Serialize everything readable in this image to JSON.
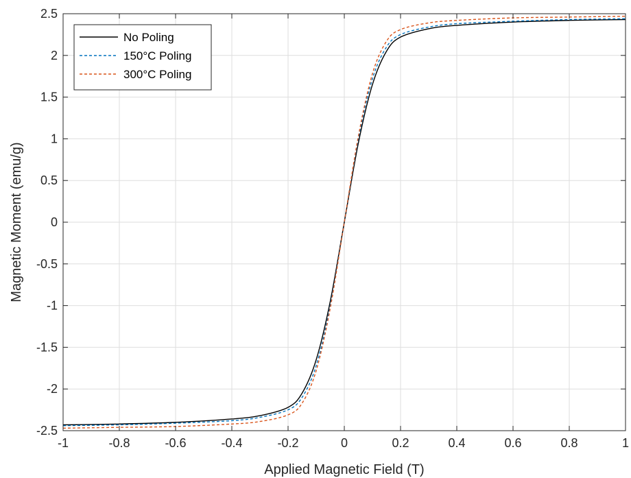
{
  "chart_data": {
    "type": "line",
    "title": "",
    "xlabel": "Applied Magnetic Field (T)",
    "ylabel": "Magnetic Moment (emu/g)",
    "xlim": [
      -1,
      1
    ],
    "ylim": [
      -2.5,
      2.5
    ],
    "xticks": [
      -1,
      -0.8,
      -0.6,
      -0.4,
      -0.2,
      0,
      0.2,
      0.4,
      0.6,
      0.8,
      1
    ],
    "xtick_labels": [
      "-1",
      "-0.8",
      "-0.6",
      "-0.4",
      "-0.2",
      "0",
      "0.2",
      "0.4",
      "0.6",
      "0.8",
      "1"
    ],
    "yticks": [
      -2.5,
      -2,
      -1.5,
      -1,
      -0.5,
      0,
      0.5,
      1,
      1.5,
      2,
      2.5
    ],
    "ytick_labels": [
      "-2.5",
      "-2",
      "-1.5",
      "-1",
      "-0.5",
      "0",
      "0.5",
      "1",
      "1.5",
      "2",
      "2.5"
    ],
    "grid": true,
    "legend_position": "top-left",
    "series": [
      {
        "name": "No Poling",
        "color": "#000000",
        "style": "solid",
        "x": [
          -1,
          -0.8,
          -0.6,
          -0.4,
          -0.3,
          -0.2,
          -0.15,
          -0.1,
          -0.05,
          0,
          0.05,
          0.1,
          0.15,
          0.2,
          0.3,
          0.4,
          0.6,
          0.8,
          1
        ],
        "y": [
          -2.43,
          -2.42,
          -2.4,
          -2.36,
          -2.32,
          -2.22,
          -2.05,
          -1.65,
          -0.95,
          0.0,
          0.95,
          1.65,
          2.05,
          2.22,
          2.32,
          2.36,
          2.4,
          2.42,
          2.43
        ]
      },
      {
        "name": "150°C Poling",
        "color": "#0072BD",
        "style": "dashed",
        "x": [
          -1,
          -0.8,
          -0.6,
          -0.4,
          -0.3,
          -0.2,
          -0.15,
          -0.1,
          -0.05,
          0,
          0.05,
          0.1,
          0.15,
          0.2,
          0.3,
          0.4,
          0.6,
          0.8,
          1
        ],
        "y": [
          -2.44,
          -2.43,
          -2.41,
          -2.38,
          -2.34,
          -2.25,
          -2.1,
          -1.72,
          -1.0,
          0.0,
          1.0,
          1.72,
          2.1,
          2.25,
          2.34,
          2.38,
          2.41,
          2.43,
          2.44
        ]
      },
      {
        "name": "300°C Poling",
        "color": "#D95319",
        "style": "dashed",
        "x": [
          -1,
          -0.8,
          -0.6,
          -0.4,
          -0.3,
          -0.2,
          -0.15,
          -0.1,
          -0.05,
          0,
          0.05,
          0.1,
          0.15,
          0.2,
          0.3,
          0.4,
          0.6,
          0.8,
          1
        ],
        "y": [
          -2.47,
          -2.46,
          -2.45,
          -2.42,
          -2.39,
          -2.31,
          -2.17,
          -1.78,
          -1.03,
          0.0,
          1.03,
          1.78,
          2.17,
          2.31,
          2.39,
          2.42,
          2.45,
          2.46,
          2.47
        ]
      }
    ]
  }
}
